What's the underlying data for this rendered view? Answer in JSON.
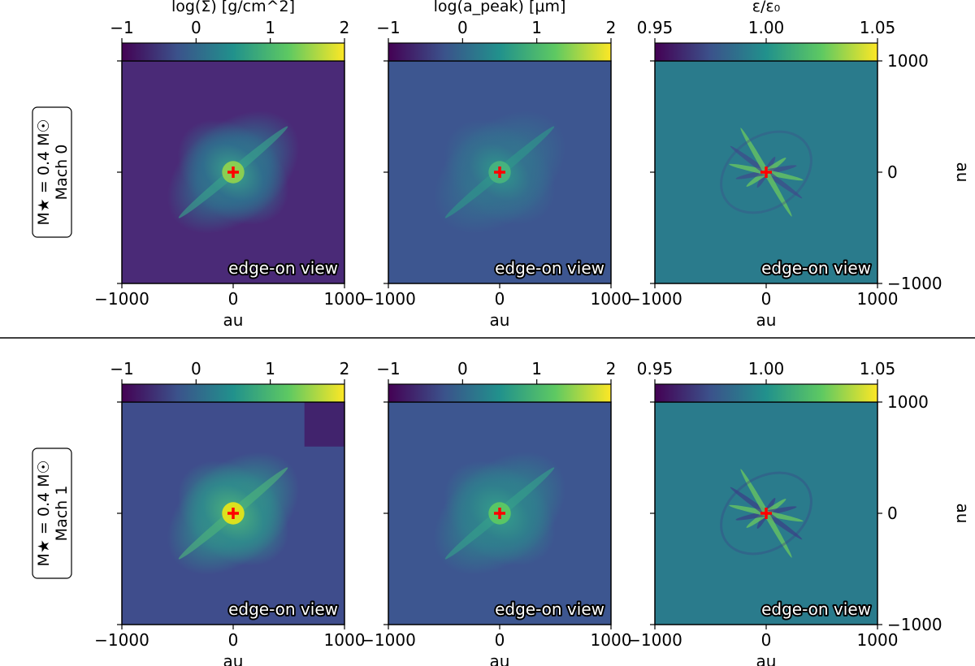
{
  "figure": {
    "divider": true,
    "star_marker_color": "#ff0000"
  },
  "colormap": [
    "#440154",
    "#3b528b",
    "#21918c",
    "#5ec962",
    "#fde725"
  ],
  "rows": [
    {
      "mass_label": "M★ = 0.4 M☉",
      "mach_label": "Mach 0",
      "show_col_titles": true
    },
    {
      "mass_label": "M★ = 0.4 M☉",
      "mach_label": "Mach 1",
      "show_col_titles": false
    }
  ],
  "columns": [
    {
      "quantity": "surface_density",
      "title": "log(Σ) [g/cm^2]",
      "cbar_ticks": [
        "−1",
        "0",
        "1",
        "2"
      ]
    },
    {
      "quantity": "peak_grain_size",
      "title": "log(a_peak)  [μm]",
      "cbar_ticks": [
        "−1",
        "0",
        "1",
        "2"
      ]
    },
    {
      "quantity": "dust_to_gas_ratio",
      "title": "ε/ε₀",
      "cbar_ticks": [
        "0.95",
        "1.00",
        "1.05"
      ]
    }
  ],
  "chart_data": {
    "type": "heatmap",
    "panel_annotation": "edge-on view",
    "xlabel": "au",
    "ylabel": "au",
    "xlim": [
      -1000,
      1000
    ],
    "ylim": [
      -1000,
      1000
    ],
    "x_ticks": [
      "−1000",
      "0",
      "1000"
    ],
    "y_ticks": [
      "1000",
      "0",
      "−1000"
    ],
    "star_position": [
      0,
      0
    ],
    "colorbars": [
      {
        "column": 0,
        "range": [
          -1,
          2
        ],
        "tick_values": [
          -1,
          0,
          1,
          2
        ]
      },
      {
        "column": 1,
        "range": [
          -1,
          2
        ],
        "tick_values": [
          -1,
          0,
          1,
          2
        ]
      },
      {
        "column": 2,
        "range": [
          0.95,
          1.05
        ],
        "tick_values": [
          0.95,
          1.0,
          1.05
        ]
      }
    ],
    "panels": [
      {
        "row": 0,
        "col": 0,
        "background": "#4a2a77",
        "envelope": "#2f6f8e",
        "structure": "#39a58a",
        "core": "#8fd14f"
      },
      {
        "row": 0,
        "col": 1,
        "background": "#3d5690",
        "envelope": "#34708f",
        "structure": "#2e9a8b",
        "core": "#48b37d"
      },
      {
        "row": 0,
        "col": 2,
        "background": "#2a7b8c",
        "envelope": "#2a7b8c",
        "structure": "#3f4a8a",
        "core": "#6fcf5b"
      },
      {
        "row": 1,
        "col": 0,
        "background": "#3f4d8c",
        "envelope": "#2f8b8c",
        "structure": "#4fb67a",
        "core": "#e5e419"
      },
      {
        "row": 1,
        "col": 1,
        "background": "#3d5690",
        "envelope": "#2f7f8d",
        "structure": "#35a18a",
        "core": "#5cc863"
      },
      {
        "row": 1,
        "col": 2,
        "background": "#2a7b8c",
        "envelope": "#2a7b8c",
        "structure": "#3b3f86",
        "core": "#6fcf5b"
      }
    ]
  }
}
